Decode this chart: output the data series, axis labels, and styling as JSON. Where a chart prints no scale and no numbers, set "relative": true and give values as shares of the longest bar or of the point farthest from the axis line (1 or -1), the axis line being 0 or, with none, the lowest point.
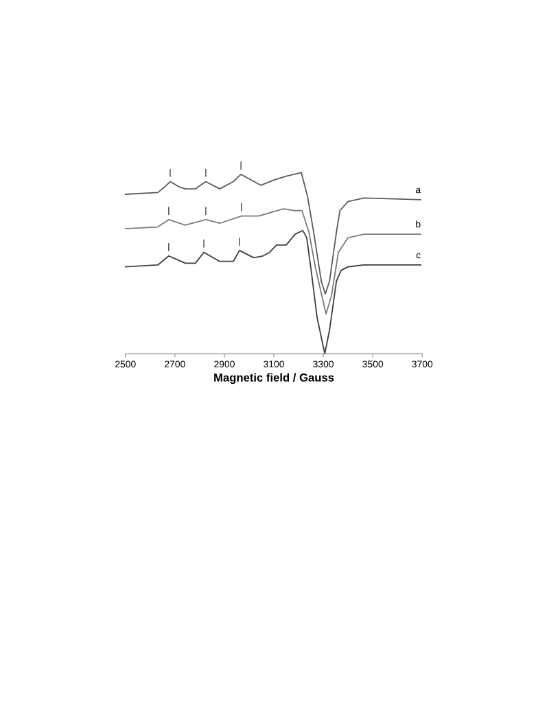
{
  "chart_data": {
    "type": "line",
    "relative": true,
    "xlabel": "Magnetic field / Gauss",
    "xlim": [
      2500,
      3700
    ],
    "xticks": [
      2500,
      2700,
      2900,
      3100,
      3300,
      3500,
      3700
    ],
    "tick_labels": "x",
    "grid": false,
    "legend": false,
    "marker": "none",
    "line_style": "solid",
    "series": [
      {
        "name": "a",
        "color": "#5a5a5a",
        "x": [
          2500,
          2631,
          2658,
          2681,
          2719,
          2742,
          2783,
          2825,
          2881,
          2936,
          2967,
          3047,
          3103,
          3150,
          3211,
          3236,
          3261,
          3292,
          3308,
          3325,
          3353,
          3367,
          3400,
          3464,
          3694
        ],
        "values": [
          0.88,
          0.89,
          0.92,
          0.95,
          0.92,
          0.91,
          0.91,
          0.95,
          0.91,
          0.95,
          0.99,
          0.93,
          0.96,
          0.98,
          1.0,
          0.87,
          0.67,
          0.4,
          0.33,
          0.4,
          0.67,
          0.79,
          0.84,
          0.86,
          0.85
        ]
      },
      {
        "name": "b",
        "color": "#7a7a7a",
        "x": [
          2500,
          2631,
          2675,
          2742,
          2825,
          2881,
          2969,
          3039,
          3139,
          3186,
          3214,
          3242,
          3269,
          3311,
          3333,
          3361,
          3400,
          3464,
          3694
        ],
        "values": [
          0.69,
          0.7,
          0.74,
          0.71,
          0.74,
          0.72,
          0.76,
          0.76,
          0.8,
          0.79,
          0.79,
          0.67,
          0.47,
          0.22,
          0.32,
          0.56,
          0.64,
          0.66,
          0.66
        ]
      },
      {
        "name": "c",
        "color": "#3c3c3c",
        "x": [
          2500,
          2631,
          2675,
          2742,
          2783,
          2817,
          2881,
          2936,
          2961,
          3019,
          3056,
          3083,
          3111,
          3150,
          3186,
          3217,
          3233,
          3250,
          3275,
          3306,
          3325,
          3353,
          3372,
          3400,
          3464,
          3694
        ],
        "values": [
          0.48,
          0.49,
          0.54,
          0.5,
          0.5,
          0.56,
          0.51,
          0.51,
          0.57,
          0.53,
          0.54,
          0.56,
          0.6,
          0.6,
          0.66,
          0.68,
          0.64,
          0.47,
          0.2,
          0.0,
          0.13,
          0.4,
          0.46,
          0.48,
          0.49,
          0.49
        ]
      }
    ],
    "annotations": [
      {
        "text": "|",
        "x": 2681,
        "y": 0.95
      },
      {
        "text": "|",
        "x": 2825,
        "y": 0.95
      },
      {
        "text": "|",
        "x": 2967,
        "y": 0.99
      },
      {
        "text": "|",
        "x": 2675,
        "y": 0.74
      },
      {
        "text": "|",
        "x": 2825,
        "y": 0.74
      },
      {
        "text": "|",
        "x": 2969,
        "y": 0.76
      },
      {
        "text": "|",
        "x": 2675,
        "y": 0.54
      },
      {
        "text": "|",
        "x": 2817,
        "y": 0.56
      },
      {
        "text": "|",
        "x": 2961,
        "y": 0.57
      }
    ]
  }
}
